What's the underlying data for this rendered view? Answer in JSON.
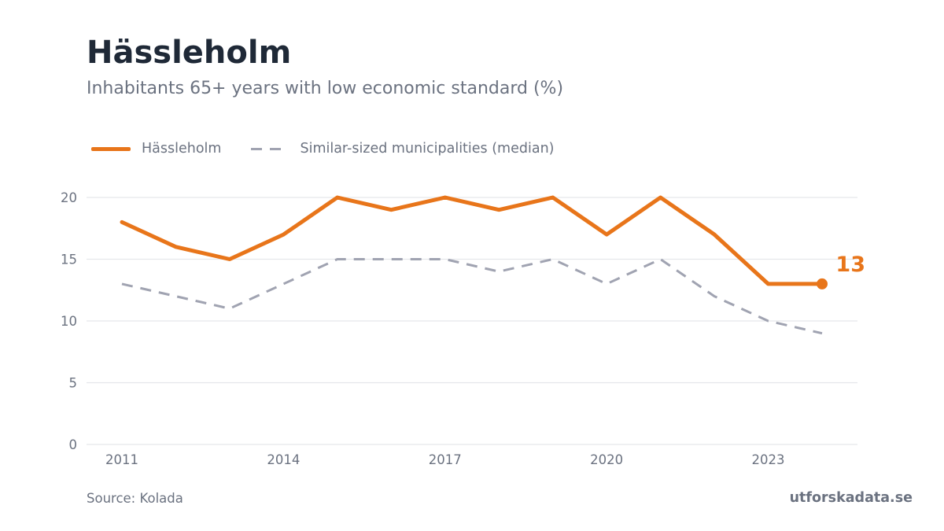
{
  "header": {
    "title": "Hässleholm",
    "subtitle": "Inhabitants 65+ years with low economic standard (%)"
  },
  "legend": {
    "primary": "Hässleholm",
    "secondary": "Similar-sized municipalities (median)"
  },
  "footer": {
    "source": "Source: Kolada",
    "brand": "utforskadata.se"
  },
  "colors": {
    "primary": "#e8751a",
    "secondary": "#a0a3b1",
    "grid": "#e5e7eb",
    "text": "#6b7280"
  },
  "chart_data": {
    "type": "line",
    "x": [
      2011,
      2012,
      2013,
      2014,
      2015,
      2016,
      2017,
      2018,
      2019,
      2020,
      2021,
      2022,
      2023,
      2024
    ],
    "x_ticks": [
      2011,
      2014,
      2017,
      2020,
      2023
    ],
    "y_ticks": [
      0,
      5,
      10,
      15,
      20
    ],
    "ylim": [
      0,
      20
    ],
    "xlim": [
      2011,
      2024
    ],
    "grid": true,
    "legend_position": "top-left",
    "series": [
      {
        "name": "Hässleholm",
        "style": "solid",
        "color": "#e8751a",
        "values": [
          18,
          16,
          15,
          17,
          20,
          19,
          20,
          19,
          20,
          17,
          20,
          17,
          13,
          13
        ]
      },
      {
        "name": "Similar-sized municipalities (median)",
        "style": "dashed",
        "color": "#a0a3b1",
        "values": [
          13,
          12,
          11,
          13,
          15,
          15,
          15,
          14,
          15,
          13,
          15,
          12,
          10,
          9
        ]
      }
    ],
    "end_label": "13"
  }
}
